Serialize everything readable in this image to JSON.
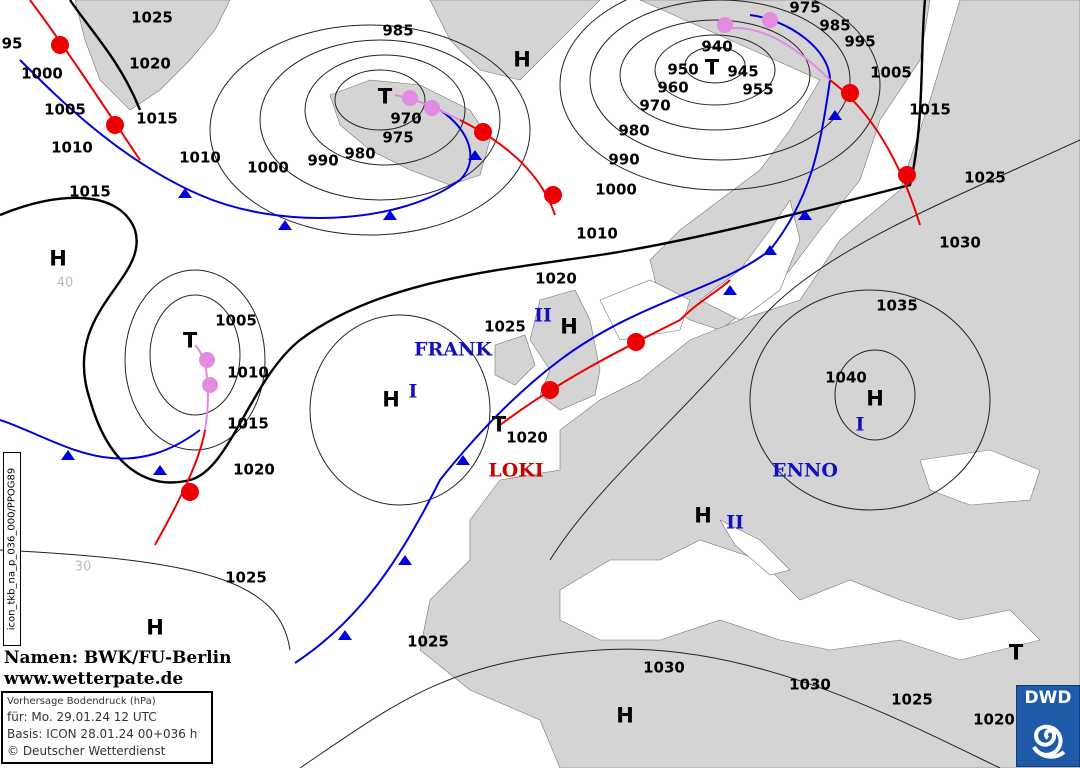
{
  "map_type": "Vorhersage Bodendruck (hPa)",
  "colors": {
    "land": "#d4d4d4",
    "sea": "#ffffff",
    "cold_front": "#0000dd",
    "warm_front": "#ee0000",
    "occlusion": "#e28be0",
    "high_name": "#1010c0",
    "low_name": "#cc0000"
  },
  "isobar_labels": [
    "1025",
    "1020",
    "1015",
    "95",
    "1000",
    "1005",
    "1010",
    "1015",
    "985",
    "970",
    "975",
    "980",
    "990",
    "1000",
    "1010",
    "975",
    "985",
    "995",
    "940",
    "950",
    "945",
    "960",
    "955",
    "970",
    "980",
    "990",
    "1000",
    "1005",
    "1015",
    "1010",
    "1025",
    "1030",
    "1020",
    "1025",
    "1035",
    "1040",
    "1005",
    "1010",
    "1015",
    "1020",
    "1020",
    "1025",
    "1025",
    "1030",
    "1030",
    "1025",
    "1020"
  ],
  "latitude_labels": [
    "40",
    "30"
  ],
  "pressure_centers": [
    "H",
    "T",
    "H",
    "T",
    "H",
    "H",
    "T",
    "H",
    "H",
    "H",
    "T",
    "H",
    "T"
  ],
  "system_names": [
    {
      "text": "FRANK",
      "type": "high"
    },
    {
      "text": "LOKI",
      "type": "low"
    },
    {
      "text": "ENNO",
      "type": "high"
    },
    {
      "text": "II",
      "type": "high"
    },
    {
      "text": "I",
      "type": "high"
    },
    {
      "text": "I",
      "type": "high"
    },
    {
      "text": "II",
      "type": "high"
    }
  ],
  "credits": {
    "line1": "Namen: BWK/FU-Berlin",
    "line2": "www.wetterpate.de"
  },
  "info_box": {
    "title": "Vorhersage Bodendruck (hPa)",
    "valid": "für:  Mo. 29.01.24  12 UTC",
    "basis": "Basis: ICON  28.01.24 00+036 h",
    "copyright": "© Deutscher Wetterdienst"
  },
  "product_code": "icon_tkb_na_p_036_000/PPOG89",
  "logo": {
    "text": "DWD"
  }
}
